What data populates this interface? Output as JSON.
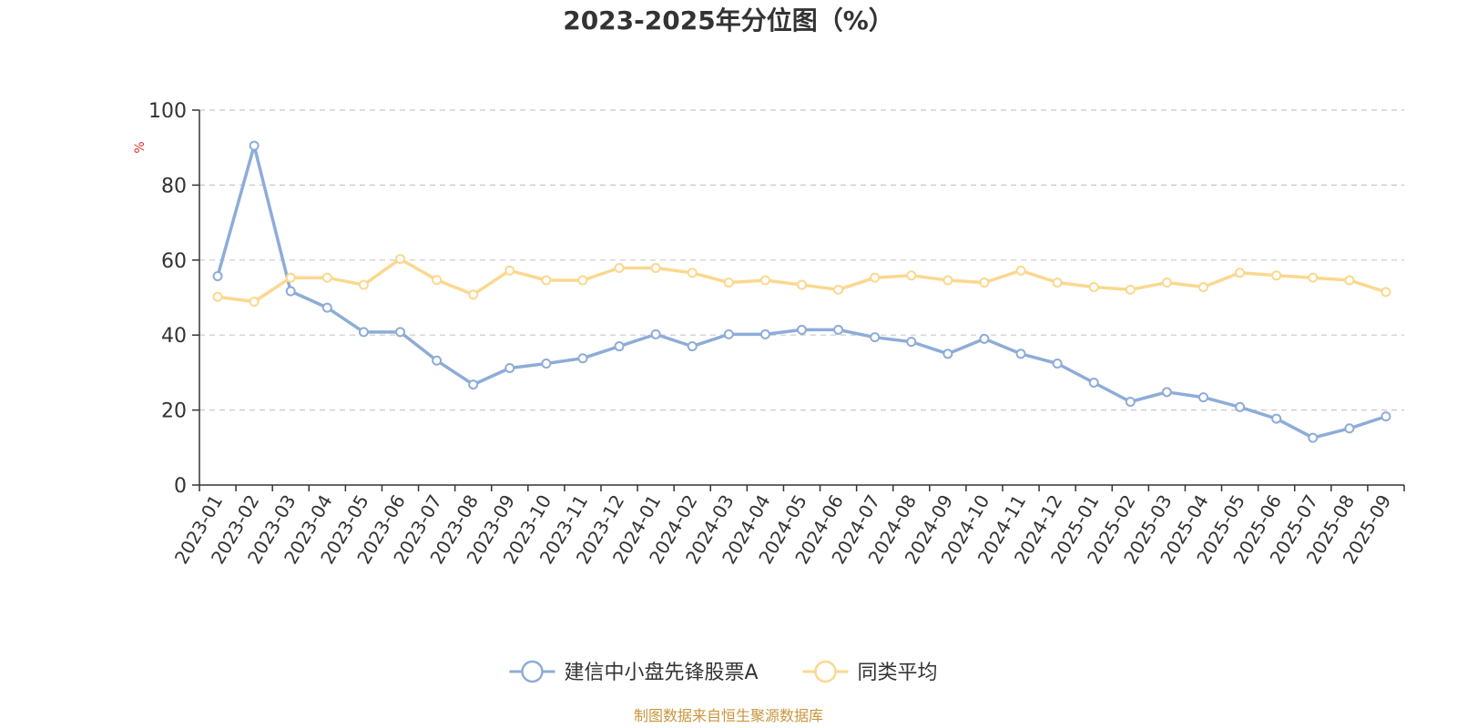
{
  "chart_data": {
    "type": "line",
    "title": "2023-2025年分位图（%）",
    "ylabel": "%",
    "ylim": [
      0,
      100
    ],
    "yticks": [
      0,
      20,
      40,
      60,
      80,
      100
    ],
    "grid": true,
    "legend_position": "bottom-center",
    "categories": [
      "2023-01",
      "2023-02",
      "2023-03",
      "2023-04",
      "2023-05",
      "2023-06",
      "2023-07",
      "2023-08",
      "2023-09",
      "2023-10",
      "2023-11",
      "2023-12",
      "2024-01",
      "2024-02",
      "2024-03",
      "2024-04",
      "2024-05",
      "2024-06",
      "2024-07",
      "2024-08",
      "2024-09",
      "2024-10",
      "2024-11",
      "2024-12",
      "2025-01",
      "2025-02",
      "2025-03",
      "2025-04",
      "2025-05",
      "2025-06",
      "2025-07",
      "2025-08",
      "2025-09"
    ],
    "series": [
      {
        "name": "建信中小盘先锋股票A",
        "color": "#8eacd8",
        "values": [
          55.7,
          90.5,
          51.7,
          47.3,
          40.8,
          40.8,
          33.2,
          26.8,
          31.2,
          32.4,
          33.8,
          37.0,
          40.2,
          37.0,
          40.2,
          40.2,
          41.4,
          41.4,
          39.4,
          38.2,
          35.0,
          39.0,
          35.0,
          32.4,
          27.3,
          22.2,
          24.8,
          23.4,
          20.8,
          17.7,
          12.6,
          15.1,
          18.3
        ]
      },
      {
        "name": "同类平均",
        "color": "#fbd88f",
        "values": [
          50.2,
          48.9,
          55.3,
          55.3,
          53.4,
          60.3,
          54.7,
          50.8,
          57.2,
          54.6,
          54.6,
          57.9,
          57.9,
          56.6,
          54.0,
          54.6,
          53.4,
          52.1,
          55.3,
          55.9,
          54.6,
          54.0,
          57.2,
          54.0,
          52.8,
          52.1,
          54.0,
          52.8,
          56.6,
          55.9,
          55.3,
          54.6,
          51.5
        ]
      }
    ],
    "axis_color": "#333333",
    "grid_color": "#c8c8c8",
    "unit_color": "#e03030",
    "source_color": "#c8963c"
  },
  "footer": {
    "source": "制图数据来自恒生聚源数据库"
  }
}
